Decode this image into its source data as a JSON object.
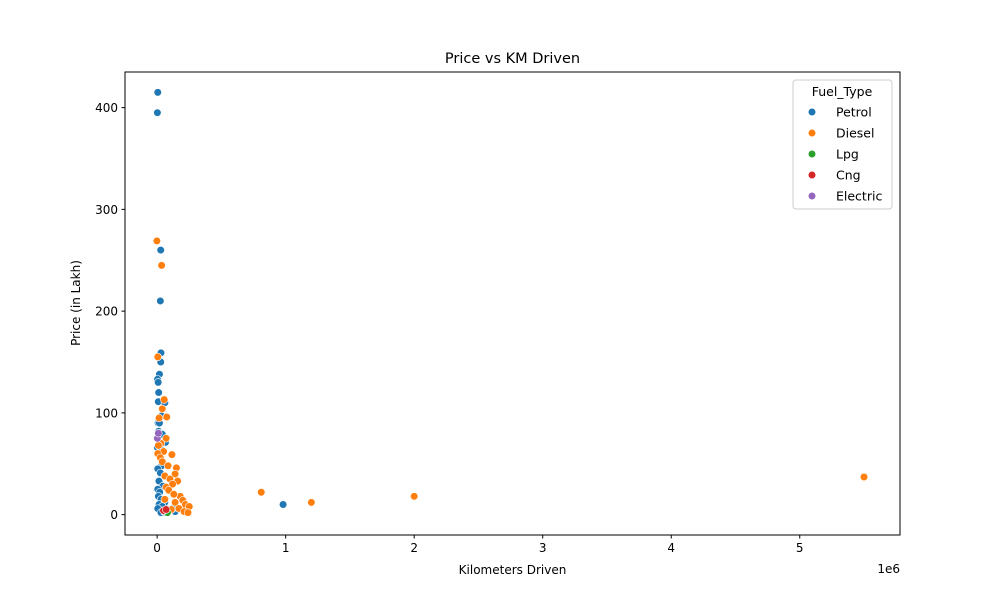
{
  "chart_data": {
    "type": "scatter",
    "title": "Price vs KM Driven",
    "xlabel": "Kilometers Driven",
    "ylabel": "Price (in Lakh)",
    "x_offset_label": "1e6",
    "xlim": [
      -250000,
      5780000
    ],
    "ylim": [
      -20,
      435
    ],
    "x_ticks": [
      0,
      1000000,
      2000000,
      3000000,
      4000000,
      5000000
    ],
    "x_tick_labels": [
      "0",
      "1",
      "2",
      "3",
      "4",
      "5"
    ],
    "y_ticks": [
      0,
      100,
      200,
      300,
      400
    ],
    "y_tick_labels": [
      "0",
      "100",
      "200",
      "300",
      "400"
    ],
    "grid": false,
    "legend": {
      "title": "Fuel_Type",
      "position": "top-right"
    },
    "series": [
      {
        "name": "Petrol",
        "color": "#1f77b4",
        "points": [
          [
            5000,
            415
          ],
          [
            2000,
            395
          ],
          [
            28000,
            260
          ],
          [
            25000,
            210
          ],
          [
            30000,
            159
          ],
          [
            28000,
            150
          ],
          [
            18000,
            138
          ],
          [
            3000,
            133
          ],
          [
            8000,
            130
          ],
          [
            12000,
            120
          ],
          [
            9000,
            111
          ],
          [
            60000,
            110
          ],
          [
            35000,
            97
          ],
          [
            8000,
            90
          ],
          [
            18000,
            90
          ],
          [
            12000,
            82
          ],
          [
            28000,
            80
          ],
          [
            40000,
            79
          ],
          [
            65000,
            71
          ],
          [
            2000,
            66
          ],
          [
            30000,
            64
          ],
          [
            35000,
            48
          ],
          [
            5000,
            45
          ],
          [
            25000,
            41
          ],
          [
            14000,
            33
          ],
          [
            45000,
            28
          ],
          [
            5000,
            25
          ],
          [
            20000,
            22
          ],
          [
            10000,
            18
          ],
          [
            30000,
            15
          ],
          [
            60000,
            12
          ],
          [
            15000,
            10
          ],
          [
            40000,
            8
          ],
          [
            5000,
            6
          ],
          [
            80000,
            5
          ],
          [
            100000,
            4
          ],
          [
            140000,
            3
          ],
          [
            30000,
            2
          ],
          [
            60000,
            2
          ],
          [
            120000,
            6
          ],
          [
            980000,
            10
          ]
        ]
      },
      {
        "name": "Diesel",
        "color": "#ff7f0e",
        "points": [
          [
            -2000,
            269
          ],
          [
            35000,
            245
          ],
          [
            5000,
            155
          ],
          [
            55000,
            113
          ],
          [
            40000,
            104
          ],
          [
            75000,
            96
          ],
          [
            15000,
            95
          ],
          [
            70000,
            75
          ],
          [
            30000,
            70
          ],
          [
            10000,
            68
          ],
          [
            50000,
            62
          ],
          [
            5000,
            60
          ],
          [
            115000,
            59
          ],
          [
            25000,
            56
          ],
          [
            40000,
            52
          ],
          [
            85000,
            48
          ],
          [
            150000,
            46
          ],
          [
            140000,
            40
          ],
          [
            60000,
            38
          ],
          [
            100000,
            35
          ],
          [
            160000,
            33
          ],
          [
            120000,
            30
          ],
          [
            70000,
            27
          ],
          [
            90000,
            24
          ],
          [
            180000,
            18
          ],
          [
            200000,
            14
          ],
          [
            140000,
            12
          ],
          [
            220000,
            10
          ],
          [
            250000,
            8
          ],
          [
            170000,
            6
          ],
          [
            110000,
            5
          ],
          [
            210000,
            3
          ],
          [
            240000,
            2
          ],
          [
            60000,
            15
          ],
          [
            130000,
            20
          ],
          [
            810000,
            22
          ],
          [
            1200000,
            12
          ],
          [
            2000000,
            18
          ],
          [
            5500000,
            37
          ]
        ]
      },
      {
        "name": "Lpg",
        "color": "#2ca02c",
        "points": [
          [
            60000,
            3
          ],
          [
            80000,
            2
          ]
        ]
      },
      {
        "name": "Cng",
        "color": "#d62728",
        "points": [
          [
            50000,
            4
          ],
          [
            70000,
            5
          ]
        ]
      },
      {
        "name": "Electric",
        "color": "#9467bd",
        "points": [
          [
            2000,
            75
          ],
          [
            10000,
            80
          ]
        ]
      }
    ]
  }
}
